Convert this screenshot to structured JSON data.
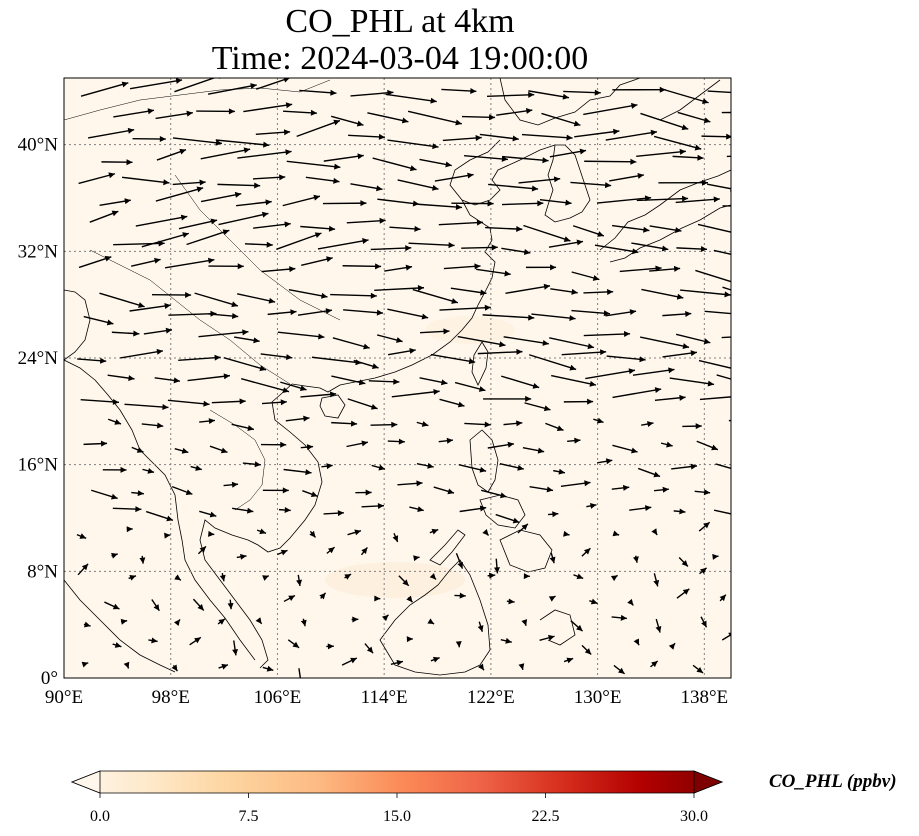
{
  "title": {
    "line1": "CO_PHL at 4km",
    "line2": "Time: 2024-03-04 19:00:00"
  },
  "map": {
    "extent": {
      "lon_min": 90,
      "lon_max": 140,
      "lat_min": 0,
      "lat_max": 45
    },
    "x_ticks": [
      {
        "lon": 90,
        "label": "90°E"
      },
      {
        "lon": 98,
        "label": "98°E"
      },
      {
        "lon": 106,
        "label": "106°E"
      },
      {
        "lon": 114,
        "label": "114°E"
      },
      {
        "lon": 122,
        "label": "122°E"
      },
      {
        "lon": 130,
        "label": "130°E"
      },
      {
        "lon": 138,
        "label": "138°E"
      }
    ],
    "y_ticks": [
      {
        "lat": 0,
        "label": "0°"
      },
      {
        "lat": 8,
        "label": "8°N"
      },
      {
        "lat": 16,
        "label": "16°N"
      },
      {
        "lat": 24,
        "label": "24°N"
      },
      {
        "lat": 32,
        "label": "32°N"
      },
      {
        "lat": 40,
        "label": "40°N"
      }
    ],
    "field_color_low": "#fff7ec",
    "coastline_color": "#000000",
    "gridline_color": "#808080",
    "wind_vectors": "approximate westerly flow north of ~20°N, weak variable flow in tropics"
  },
  "colorbar": {
    "label": "CO_PHL (ppbv)",
    "min": 0.0,
    "max": 30.0,
    "ticks": [
      "0.0",
      "7.5",
      "15.0",
      "22.5",
      "30.0"
    ],
    "extend": "both",
    "colormap": "OrRd",
    "colors": [
      "#fff7ec",
      "#fee8c8",
      "#fdd49e",
      "#fdbb84",
      "#fc8d59",
      "#ef6548",
      "#d7301f",
      "#b30000",
      "#7f0000"
    ]
  }
}
